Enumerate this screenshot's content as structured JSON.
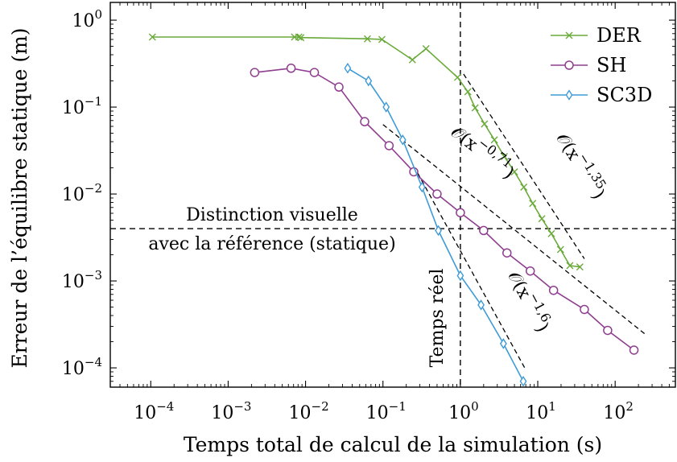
{
  "chart_data": {
    "type": "line",
    "xlabel": "Temps total de calcul de la simulation (s)",
    "ylabel": "Erreur de l’équilibre statique (m)",
    "xscale": "log",
    "yscale": "log",
    "xlim": [
      3e-05,
      600
    ],
    "ylim": [
      6e-05,
      1.6
    ],
    "xticks": [
      {
        "value": 0.0001,
        "base": "10",
        "exp": "−4"
      },
      {
        "value": 0.001,
        "base": "10",
        "exp": "−3"
      },
      {
        "value": 0.01,
        "base": "10",
        "exp": "−2"
      },
      {
        "value": 0.1,
        "base": "10",
        "exp": "−1"
      },
      {
        "value": 1,
        "base": "10",
        "exp": "0"
      },
      {
        "value": 10,
        "base": "10",
        "exp": "1"
      },
      {
        "value": 100,
        "base": "10",
        "exp": "2"
      }
    ],
    "yticks": [
      {
        "value": 0.0001,
        "base": "10",
        "exp": "−4"
      },
      {
        "value": 0.001,
        "base": "10",
        "exp": "−3"
      },
      {
        "value": 0.01,
        "base": "10",
        "exp": "−2"
      },
      {
        "value": 0.1,
        "base": "10",
        "exp": "−1"
      },
      {
        "value": 1,
        "base": "10",
        "exp": "0"
      }
    ],
    "grid": false,
    "legend_position": "top-right",
    "series": [
      {
        "name": "DER",
        "color": "#6aaa3a",
        "marker": "cross",
        "x": [
          0.000105,
          0.0072,
          0.0082,
          0.0087,
          0.063,
          0.097,
          0.24,
          0.36,
          0.92,
          1.25,
          1.55,
          2.05,
          2.75,
          3.7,
          5.0,
          6.6,
          8.6,
          11.3,
          15.0,
          19.7,
          26.0,
          35.0
        ],
        "y": [
          0.64,
          0.64,
          0.64,
          0.63,
          0.61,
          0.6,
          0.35,
          0.47,
          0.22,
          0.15,
          0.098,
          0.064,
          0.042,
          0.027,
          0.018,
          0.012,
          0.0078,
          0.0052,
          0.0035,
          0.0023,
          0.0015,
          0.00145
        ]
      },
      {
        "name": "SH",
        "color": "#8f3e8f",
        "marker": "circle",
        "x": [
          0.0022,
          0.0065,
          0.013,
          0.027,
          0.058,
          0.12,
          0.25,
          0.5,
          1.0,
          2.0,
          4.0,
          8.0,
          16.0,
          40.0,
          80.0,
          175.0
        ],
        "y": [
          0.25,
          0.28,
          0.25,
          0.17,
          0.068,
          0.036,
          0.018,
          0.01,
          0.0061,
          0.0038,
          0.0021,
          0.0013,
          0.00078,
          0.00047,
          0.00027,
          0.00016
        ]
      },
      {
        "name": "SC3D",
        "color": "#3f9bd6",
        "marker": "diamond",
        "x": [
          0.035,
          0.065,
          0.11,
          0.18,
          0.32,
          0.52,
          1.0,
          1.85,
          3.6,
          6.5
        ],
        "y": [
          0.28,
          0.2,
          0.1,
          0.042,
          0.012,
          0.0038,
          0.00115,
          0.00053,
          0.00019,
          7e-05
        ]
      }
    ],
    "reference_slopes": [
      {
        "label": "𝒪(x",
        "exponent": "−0,71",
        "x": [
          0.1,
          250.0
        ],
        "y": [
          0.063,
          0.00024
        ]
      },
      {
        "label": "𝒪(x",
        "exponent": "−1,35",
        "x": [
          1.1,
          40.0
        ],
        "y": [
          0.24,
          0.0018
        ]
      },
      {
        "label": "𝒪(x",
        "exponent": "−1,6",
        "x": [
          0.28,
          7.0
        ],
        "y": [
          0.0175,
          9.5e-05
        ]
      }
    ],
    "reference_lines": {
      "vertical": {
        "x": 1,
        "label": "Temps réel"
      },
      "horizontal": {
        "y": 0.004,
        "label_line1": "Distinction visuelle",
        "label_line2": "avec la référence (statique)"
      }
    }
  }
}
